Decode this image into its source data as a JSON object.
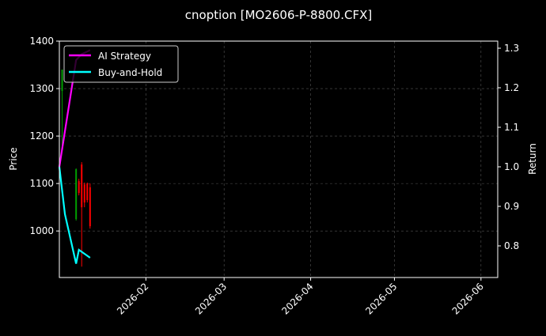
{
  "chart_data": {
    "type": "line",
    "title": "cnoption [MO2606-P-8800.CFX]",
    "ylabel": "Price",
    "ylabel_right": "Return",
    "ylim": [
      902,
      1400
    ],
    "ylim_right": [
      0.72,
      1.318
    ],
    "xlim": [
      "2026-01-01",
      "2026-06-07"
    ],
    "yticks": [
      1000,
      1100,
      1200,
      1300,
      1400
    ],
    "yticks_right": [
      0.8,
      0.9,
      1.0,
      1.1,
      1.2,
      1.3
    ],
    "xticks": [
      "2026-02",
      "2026-03",
      "2026-04",
      "2026-05",
      "2026-06"
    ],
    "xtick_dates": [
      "2026-02-01",
      "2026-03-01",
      "2026-04-01",
      "2026-05-01",
      "2026-06-01"
    ],
    "grid": true,
    "legend_placement": "top-left",
    "candles": [
      {
        "date": "2026-01-02",
        "open": 1295,
        "high": 1340,
        "low": 1180,
        "close": 1340
      },
      {
        "date": "2026-01-07",
        "open": 1025,
        "high": 1132,
        "low": 1022,
        "close": 1130
      },
      {
        "date": "2026-01-08",
        "open": 1105,
        "high": 1110,
        "low": 1075,
        "close": 1080
      },
      {
        "date": "2026-01-09",
        "open": 1140,
        "high": 1145,
        "low": 925,
        "close": 1050
      },
      {
        "date": "2026-01-10",
        "open": 1098,
        "high": 1102,
        "low": 1050,
        "close": 1060
      },
      {
        "date": "2026-01-11",
        "open": 1100,
        "high": 1102,
        "low": 1060,
        "close": 1065
      },
      {
        "date": "2026-01-12",
        "open": 1092,
        "high": 1100,
        "low": 1005,
        "close": 1010
      }
    ],
    "series": [
      {
        "name": "AI Strategy",
        "color": "#ff00ff",
        "axis": "right",
        "x": [
          "2026-01-01",
          "2026-01-07",
          "2026-01-09",
          "2026-01-12"
        ],
        "values": [
          1.0,
          1.27,
          1.285,
          1.295
        ]
      },
      {
        "name": "Buy-and-Hold",
        "color": "#00ffff",
        "axis": "right",
        "x": [
          "2026-01-01",
          "2026-01-03",
          "2026-01-07",
          "2026-01-08",
          "2026-01-12"
        ],
        "values": [
          1.0,
          0.88,
          0.755,
          0.79,
          0.77
        ]
      }
    ],
    "colors": {
      "up": "#00a000",
      "down": "#ff0000",
      "grid": "#555555"
    }
  }
}
